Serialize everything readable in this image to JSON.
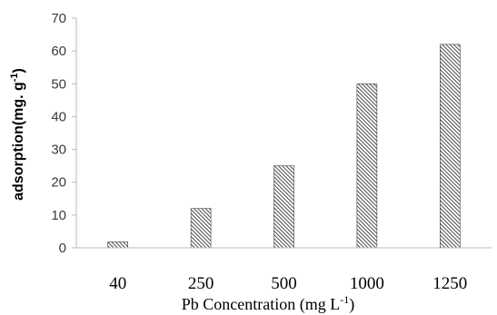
{
  "chart_data": {
    "type": "bar",
    "categories": [
      "40",
      "250",
      "500",
      "1000",
      "1250"
    ],
    "values": [
      1.8,
      12,
      25,
      50,
      62
    ],
    "title": "",
    "xlabel": "Pb Concentration (mg L",
    "xlabel_sup": "-1",
    "xlabel_end": ")",
    "ylabel": "adsorption(mg. g",
    "ylabel_sup": "-1",
    "ylabel_end": ")",
    "ylim": [
      0,
      70
    ],
    "yticks": [
      "0",
      "10",
      "20",
      "30",
      "40",
      "50",
      "60",
      "70"
    ],
    "grid": false,
    "bar_fill": "hatched-diagonal",
    "colors": {
      "bar_stroke": "#222222",
      "axis": "#bbbbbb"
    }
  }
}
